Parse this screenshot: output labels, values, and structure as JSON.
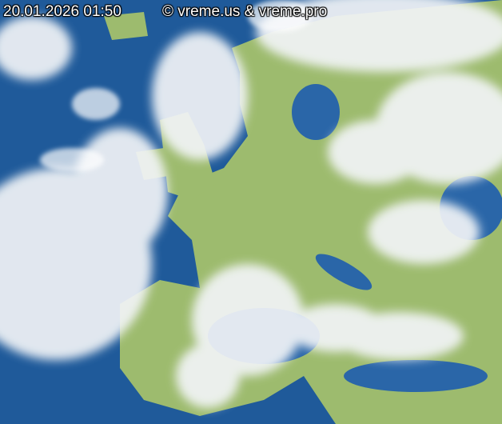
{
  "overlay": {
    "timestamp": "20.01.2026 01:50",
    "copyright": "© vreme.us & vreme.pro"
  },
  "colors": {
    "sea": "#1f5a9a",
    "land": "#9dbb6e",
    "cloud": "#f2f4f7"
  }
}
